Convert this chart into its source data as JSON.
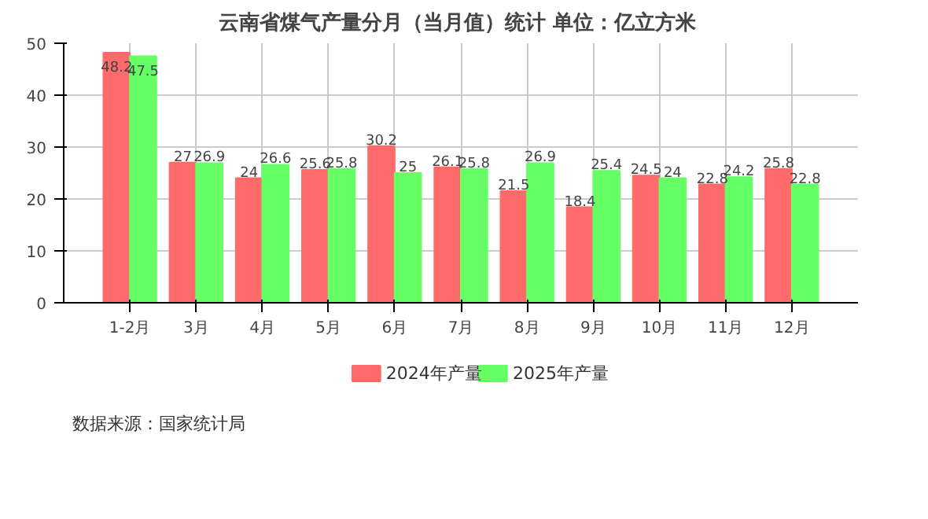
{
  "chart_data": {
    "type": "bar",
    "title": "云南省煤气产量分月（当月值）统计  单位：亿立方米",
    "categories": [
      "1-2月",
      "3月",
      "4月",
      "5月",
      "6月",
      "7月",
      "8月",
      "9月",
      "10月",
      "11月",
      "12月"
    ],
    "series": [
      {
        "name": "2024年产量",
        "color": "#ff6a6a",
        "values": [
          48.2,
          27,
          24,
          25.6,
          30.2,
          26.1,
          21.5,
          18.4,
          24.5,
          22.8,
          25.8
        ]
      },
      {
        "name": "2025年产量",
        "color": "#66ff66",
        "values": [
          47.5,
          26.9,
          26.6,
          25.8,
          25,
          25.8,
          26.9,
          25.4,
          24,
          24.2,
          22.8
        ]
      }
    ],
    "ylim": [
      0,
      50
    ],
    "yticks": [
      0,
      10,
      20,
      30,
      40,
      50
    ],
    "grid": true,
    "legend": "bottom",
    "data_labels": true,
    "annotations": [
      "数据来源：国家统计局"
    ]
  }
}
